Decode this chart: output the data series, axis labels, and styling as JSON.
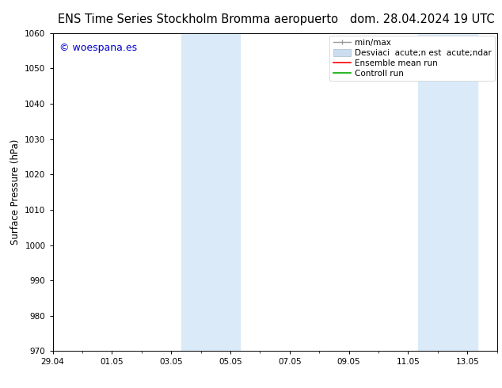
{
  "title_left": "ENS Time Series Stockholm Bromma aeropuerto",
  "title_right": "dom. 28.04.2024 19 UTC",
  "ylabel": "Surface Pressure (hPa)",
  "ylim": [
    970,
    1060
  ],
  "yticks": [
    970,
    980,
    990,
    1000,
    1010,
    1020,
    1030,
    1040,
    1050,
    1060
  ],
  "xtick_labels": [
    "29.04",
    "01.05",
    "03.05",
    "05.05",
    "07.05",
    "09.05",
    "11.05",
    "13.05"
  ],
  "xtick_positions": [
    0,
    2,
    4,
    6,
    8,
    10,
    12,
    14
  ],
  "xlim": [
    0,
    15
  ],
  "watermark": "© woespana.es",
  "watermark_color": "#0000cc",
  "background_color": "#ffffff",
  "plot_bg_color": "#ffffff",
  "shaded_bands": [
    {
      "x_start": 4.33,
      "x_end": 6.33,
      "color": "#daeaf8"
    },
    {
      "x_start": 12.33,
      "x_end": 14.33,
      "color": "#daeaf8"
    }
  ],
  "legend_labels": [
    "min/max",
    "Desviaci  acute;n est  acute;ndar",
    "Ensemble mean run",
    "Controll run"
  ],
  "legend_colors": [
    "#999999",
    "#ccddf0",
    "#ff0000",
    "#00aa00"
  ],
  "title_fontsize": 10.5,
  "tick_fontsize": 7.5,
  "ylabel_fontsize": 8.5,
  "legend_fontsize": 7.5,
  "watermark_fontsize": 9
}
